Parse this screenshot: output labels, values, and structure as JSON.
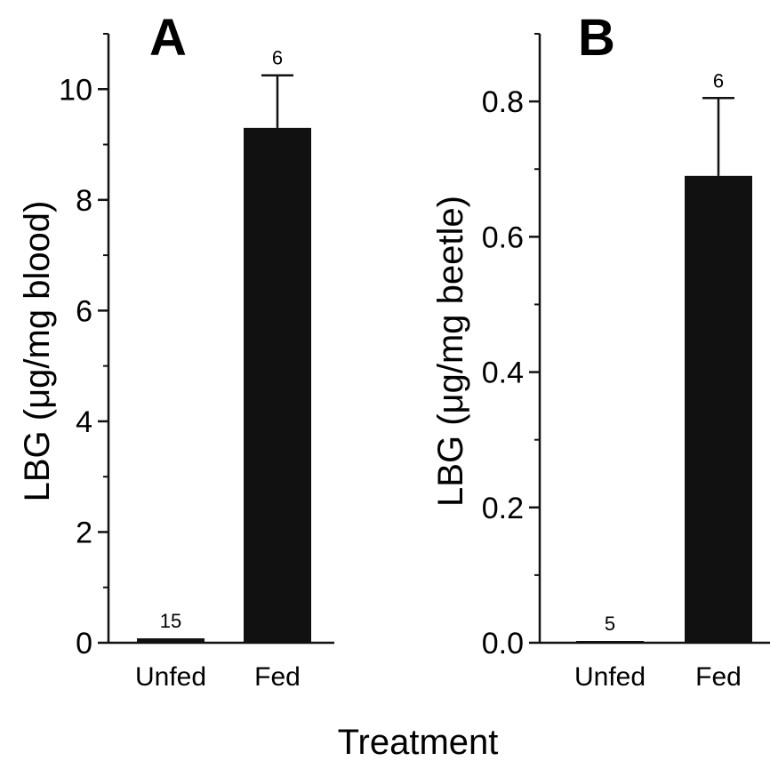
{
  "figure": {
    "xlabel": "Treatment"
  },
  "chart_data": [
    {
      "type": "bar",
      "panel": "A",
      "ylabel": "LBG (μg/mg blood)",
      "ylim": [
        0,
        11
      ],
      "yticks": [
        0,
        2,
        4,
        6,
        8,
        10
      ],
      "ytick_labels": [
        "0",
        "2",
        "4",
        "6",
        "8",
        "10"
      ],
      "categories": [
        "Unfed",
        "Fed"
      ],
      "values": [
        0.08,
        9.3
      ],
      "errors": [
        0,
        0.95
      ],
      "n_labels": [
        "15",
        "6"
      ],
      "bar_color": "#111111"
    },
    {
      "type": "bar",
      "panel": "B",
      "ylabel": "LBG (μg/mg beetle)",
      "ylim": [
        0,
        0.9
      ],
      "yticks": [
        0,
        0.2,
        0.4,
        0.6,
        0.8
      ],
      "ytick_labels": [
        "0.0",
        "0.2",
        "0.4",
        "0.6",
        "0.8"
      ],
      "categories": [
        "Unfed",
        "Fed"
      ],
      "values": [
        0.002,
        0.69
      ],
      "errors": [
        0,
        0.115
      ],
      "n_labels": [
        "5",
        "6"
      ],
      "bar_color": "#111111"
    }
  ]
}
